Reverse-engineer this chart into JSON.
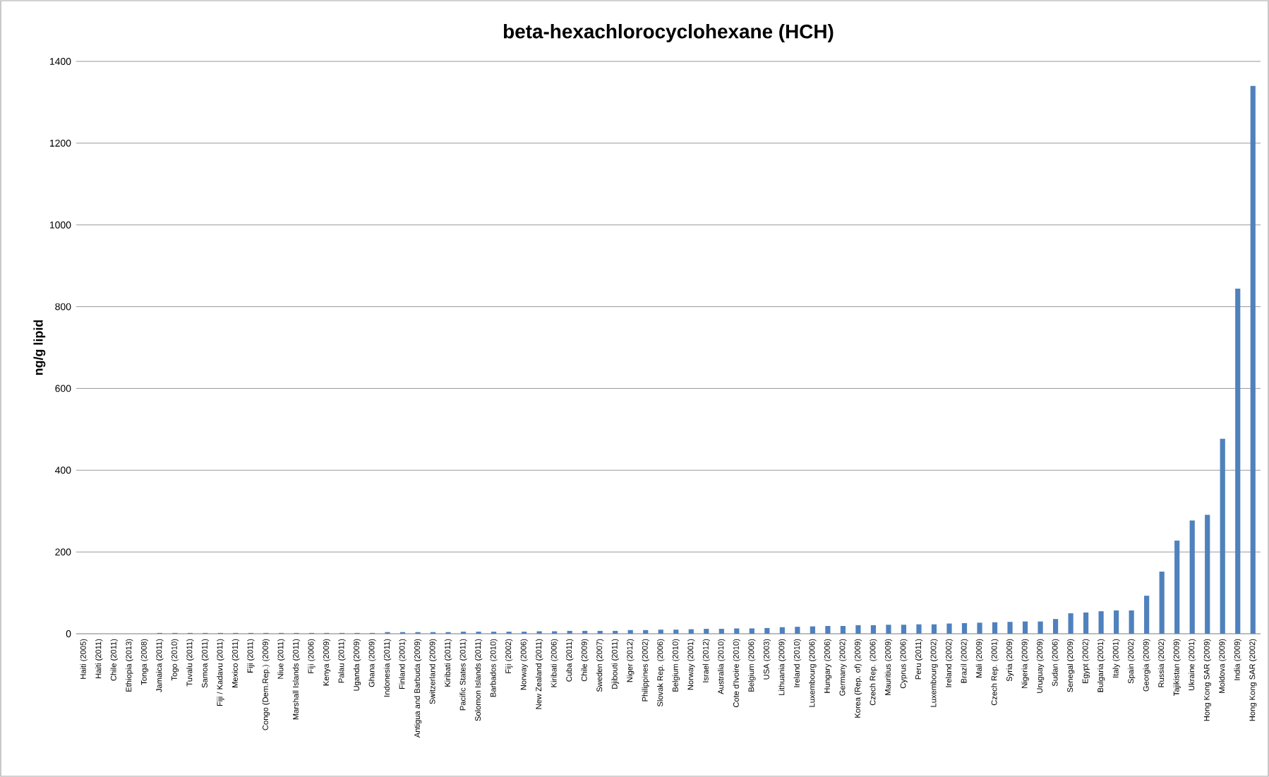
{
  "chart_data": {
    "type": "bar",
    "title": "beta-hexachlorocyclohexane (HCH)",
    "ylabel": "ng/g lipid",
    "categories": [
      "Haiti (2005)",
      "Haiti (2011)",
      "Chile (2011)",
      "Ethiopia (2013)",
      "Tonga (2008)",
      "Jamaica (2011)",
      "Togo (2010)",
      "Tuvalu (2011)",
      "Samoa (2011)",
      "Fiji / Kadavu (2011)",
      "Mexico (2011)",
      "Fiji (2011)",
      "Congo (Dem.Rep.) (2009)",
      "Niue (2011)",
      "Marshall Islands (2011)",
      "Fiji (2006)",
      "Kenya (2009)",
      "Palau (2011)",
      "Uganda (2009)",
      "Ghana (2009)",
      "Indonesia (2011)",
      "Finland (2001)",
      "Antigua and Barbuda (2009)",
      "Switzerland (2009)",
      "Kiribati (2011)",
      "Pacific States (2011)",
      "Solomon Islands (2011)",
      "Barbados (2010)",
      "Fiji (2002)",
      "Norway (2006)",
      "New Zealand (2011)",
      "Kiribati (2006)",
      "Cuba (2011)",
      "Chile (2009)",
      "Sweden (2007)",
      "Djibouti (2011)",
      "Niger (2012)",
      "Philippines (2002)",
      "Slovak Rep. (2006)",
      "Belgium (2010)",
      "Norway (2001)",
      "Israel (2012)",
      "Australia (2010)",
      "Cote d'Ivoire (2010)",
      "Belgium (2006)",
      "USA (2003)",
      "Lithuania (2009)",
      "Ireland (2010)",
      "Luxembourg (2006)",
      "Hungary (2006)",
      "Germany (2002)",
      "Korea (Rep. of) (2009)",
      "Czech Rep. (2006)",
      "Mauritius (2009)",
      "Cyprus (2006)",
      "Peru (2011)",
      "Luxembourg (2002)",
      "Ireland (2002)",
      "Brazil (2002)",
      "Mali (2009)",
      "Czech Rep. (2001)",
      "Syria (2009)",
      "Nigeria (2009)",
      "Uruguay (2009)",
      "Sudan (2006)",
      "Senegal (2009)",
      "Egypt (2002)",
      "Bulgaria (2001)",
      "Italy (2001)",
      "Spain (2002)",
      "Georgia (2009)",
      "Russia (2002)",
      "Tajikistan (2009)",
      "Ukraine (2001)",
      "Hong Kong SAR (2009)",
      "Moldova (2009)",
      "India (2009)",
      "Hong Kong SAR (2002)"
    ],
    "values": [
      0,
      0,
      0,
      0,
      0,
      2,
      2,
      2,
      2,
      2,
      2,
      2,
      2,
      2,
      2,
      2,
      2,
      2,
      2,
      2,
      4,
      4,
      4,
      4,
      4,
      5,
      5,
      5,
      5,
      5,
      6,
      6,
      7,
      7,
      7,
      7,
      9,
      9,
      10,
      10,
      11,
      12,
      12,
      13,
      13,
      14,
      16,
      17,
      18,
      19,
      19,
      21,
      21,
      22,
      22,
      23,
      23,
      25,
      26,
      27,
      28,
      29,
      30,
      30,
      36,
      50,
      52,
      55,
      57,
      57,
      93,
      152,
      228,
      277,
      291,
      477,
      844,
      1340
    ],
    "color": "#4f81bd",
    "ylim": [
      0,
      1400
    ],
    "yticks": [
      0,
      200,
      400,
      600,
      800,
      1000,
      1200,
      1400
    ],
    "grid": "y"
  }
}
